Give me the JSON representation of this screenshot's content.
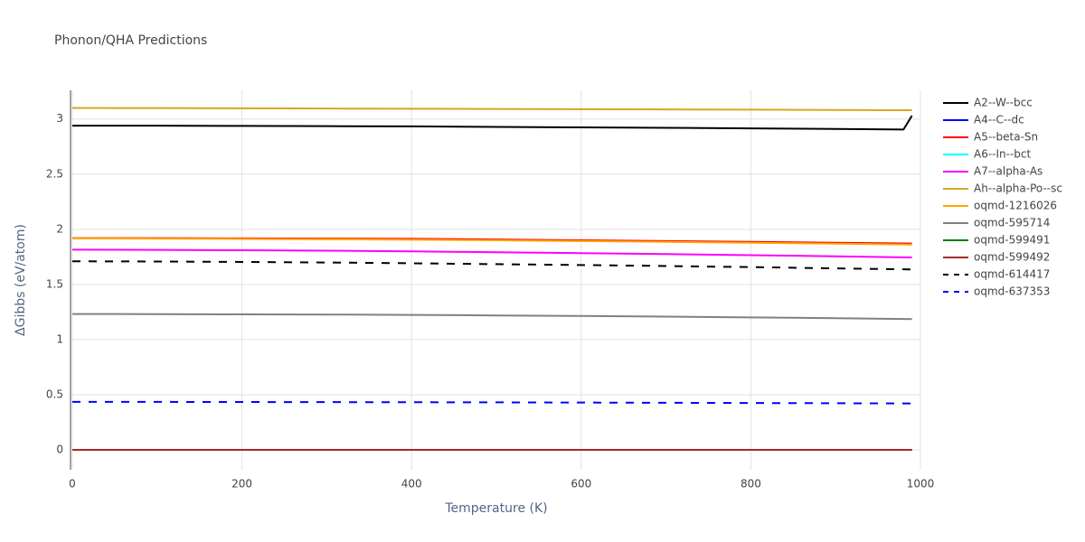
{
  "chart_data": {
    "type": "line",
    "title": "Phonon/QHA Predictions",
    "x_label": "Temperature (K)",
    "y_label": "ΔGibbs (eV/atom)",
    "x": [
      0,
      100,
      200,
      300,
      400,
      500,
      600,
      700,
      800,
      900,
      980,
      990
    ],
    "xlim": [
      0,
      1000
    ],
    "xticks": [
      0,
      200,
      400,
      600,
      800,
      1000
    ],
    "ylim": [
      -0.18,
      3.26
    ],
    "yticks": [
      0,
      0.5,
      1,
      1.5,
      2,
      2.5,
      3
    ],
    "grid": true,
    "legend": "right",
    "series": [
      {
        "name": "A2--W--bcc",
        "color": "#000000",
        "dash": "solid",
        "values": [
          2.94,
          2.94,
          2.937,
          2.935,
          2.933,
          2.928,
          2.924,
          2.92,
          2.915,
          2.91,
          2.905,
          3.03
        ]
      },
      {
        "name": "A4--C--dc",
        "color": "#0000ff",
        "dash": "solid",
        "values": [
          0,
          0,
          0,
          0,
          0,
          0,
          0,
          0,
          0,
          0,
          0,
          0
        ]
      },
      {
        "name": "A5--beta-Sn",
        "color": "#ff0000",
        "dash": "solid",
        "values": [
          1.92,
          1.92,
          1.918,
          1.916,
          1.914,
          1.908,
          1.9,
          1.893,
          1.886,
          1.878,
          1.872,
          1.871
        ]
      },
      {
        "name": "A6--In--bct",
        "color": "#00ffff",
        "dash": "solid",
        "values": [
          0,
          0,
          0,
          0,
          0,
          0,
          0,
          0,
          0,
          0,
          0,
          0
        ]
      },
      {
        "name": "A7--alpha-As",
        "color": "#ff00ff",
        "dash": "solid",
        "values": [
          1.815,
          1.813,
          1.81,
          1.806,
          1.8,
          1.792,
          1.784,
          1.775,
          1.765,
          1.755,
          1.746,
          1.745
        ]
      },
      {
        "name": "Ah--alpha-Po--sc",
        "color": "#daa520",
        "dash": "solid",
        "values": [
          3.1,
          3.099,
          3.097,
          3.095,
          3.093,
          3.091,
          3.089,
          3.087,
          3.085,
          3.082,
          3.08,
          3.08
        ]
      },
      {
        "name": "oqmd-1216026",
        "color": "#ffa500",
        "dash": "solid",
        "values": [
          1.918,
          1.916,
          1.913,
          1.91,
          1.906,
          1.9,
          1.893,
          1.886,
          1.878,
          1.87,
          1.862,
          1.861
        ]
      },
      {
        "name": "oqmd-595714",
        "color": "#808080",
        "dash": "solid",
        "values": [
          1.232,
          1.231,
          1.229,
          1.227,
          1.224,
          1.219,
          1.214,
          1.208,
          1.201,
          1.194,
          1.187,
          1.186
        ]
      },
      {
        "name": "oqmd-599491",
        "color": "#008000",
        "dash": "solid",
        "values": [
          0,
          0,
          0,
          0,
          0,
          0,
          0,
          0,
          0,
          0,
          0,
          0
        ]
      },
      {
        "name": "oqmd-599492",
        "color": "#a52a2a",
        "dash": "solid",
        "values": [
          0,
          0,
          0,
          0,
          0,
          0,
          0,
          0,
          0,
          0,
          0,
          0
        ]
      },
      {
        "name": "oqmd-614417",
        "color": "#000000",
        "dash": "dash",
        "values": [
          1.71,
          1.708,
          1.704,
          1.699,
          1.692,
          1.684,
          1.676,
          1.667,
          1.657,
          1.646,
          1.637,
          1.636
        ]
      },
      {
        "name": "oqmd-637353",
        "color": "#0000ff",
        "dash": "dash",
        "values": [
          0.435,
          0.435,
          0.434,
          0.433,
          0.432,
          0.431,
          0.429,
          0.427,
          0.425,
          0.423,
          0.421,
          0.421
        ]
      }
    ]
  }
}
